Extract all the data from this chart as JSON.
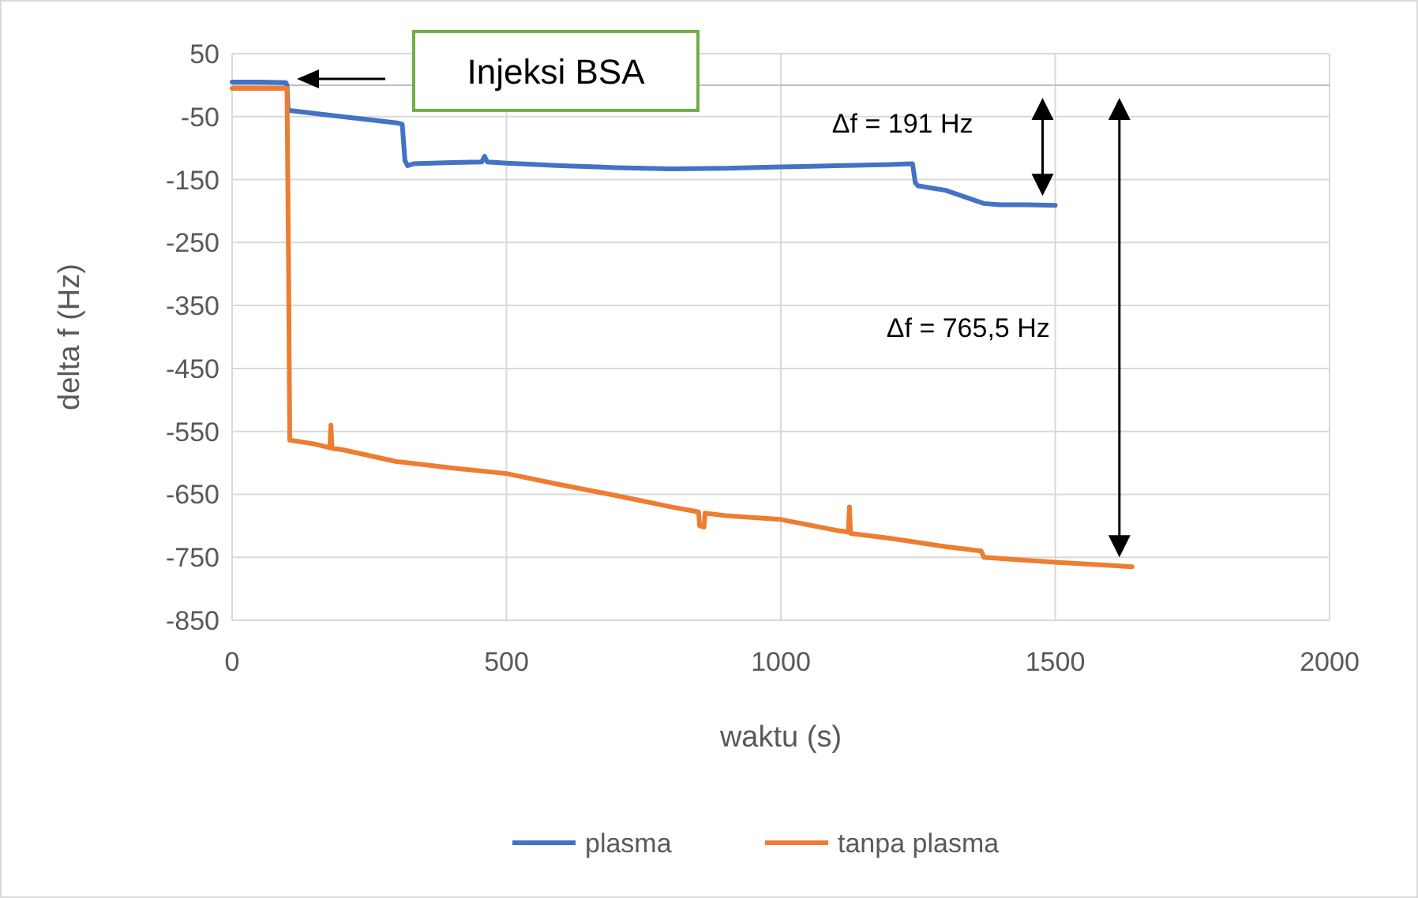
{
  "chart_data": {
    "type": "line",
    "xlabel": "waktu (s)",
    "ylabel": "delta f (Hz)",
    "xlim": [
      0,
      2000
    ],
    "xticks": [
      0,
      500,
      1000,
      1500,
      2000
    ],
    "ylim": [
      -850,
      50
    ],
    "yticks": [
      -850,
      -750,
      -650,
      -550,
      -450,
      -350,
      -250,
      -150,
      -50,
      50
    ],
    "grid": true,
    "legend": "bottom",
    "marker": "none",
    "line_style": "solid",
    "series": [
      {
        "name": "plasma",
        "color": "#4472c4",
        "x": [
          0,
          50,
          98,
          100,
          102,
          150,
          200,
          250,
          300,
          310,
          315,
          320,
          330,
          400,
          455,
          460,
          465,
          500,
          600,
          700,
          800,
          900,
          1000,
          1100,
          1200,
          1240,
          1245,
          1250,
          1300,
          1370,
          1400,
          1450,
          1500
        ],
        "values": [
          5,
          5,
          4,
          0,
          -40,
          -45,
          -50,
          -55,
          -60,
          -62,
          -120,
          -128,
          -125,
          -123,
          -122,
          -113,
          -122,
          -124,
          -128,
          -131,
          -133,
          -132,
          -130,
          -128,
          -126,
          -125,
          -155,
          -160,
          -167,
          -188,
          -190,
          -190,
          -191
        ]
      },
      {
        "name": "tanpa plasma",
        "color": "#ed7d31",
        "x": [
          0,
          50,
          100,
          103,
          105,
          150,
          178,
          180,
          182,
          200,
          300,
          400,
          500,
          600,
          700,
          800,
          850,
          852,
          860,
          862,
          900,
          1000,
          1100,
          1123,
          1125,
          1127,
          1200,
          1300,
          1365,
          1370,
          1400,
          1500,
          1600,
          1640
        ],
        "values": [
          -5,
          -5,
          -5,
          -300,
          -564,
          -570,
          -576,
          -540,
          -577,
          -579,
          -598,
          -608,
          -617,
          -635,
          -652,
          -670,
          -678,
          -700,
          -702,
          -680,
          -684,
          -690,
          -707,
          -710,
          -670,
          -712,
          -720,
          -733,
          -740,
          -750,
          -752,
          -758,
          -763,
          -765
        ]
      }
    ],
    "annotations": [
      "Injeksi BSA",
      "Δf = 191 Hz",
      "Δf = 765,5 Hz"
    ]
  }
}
